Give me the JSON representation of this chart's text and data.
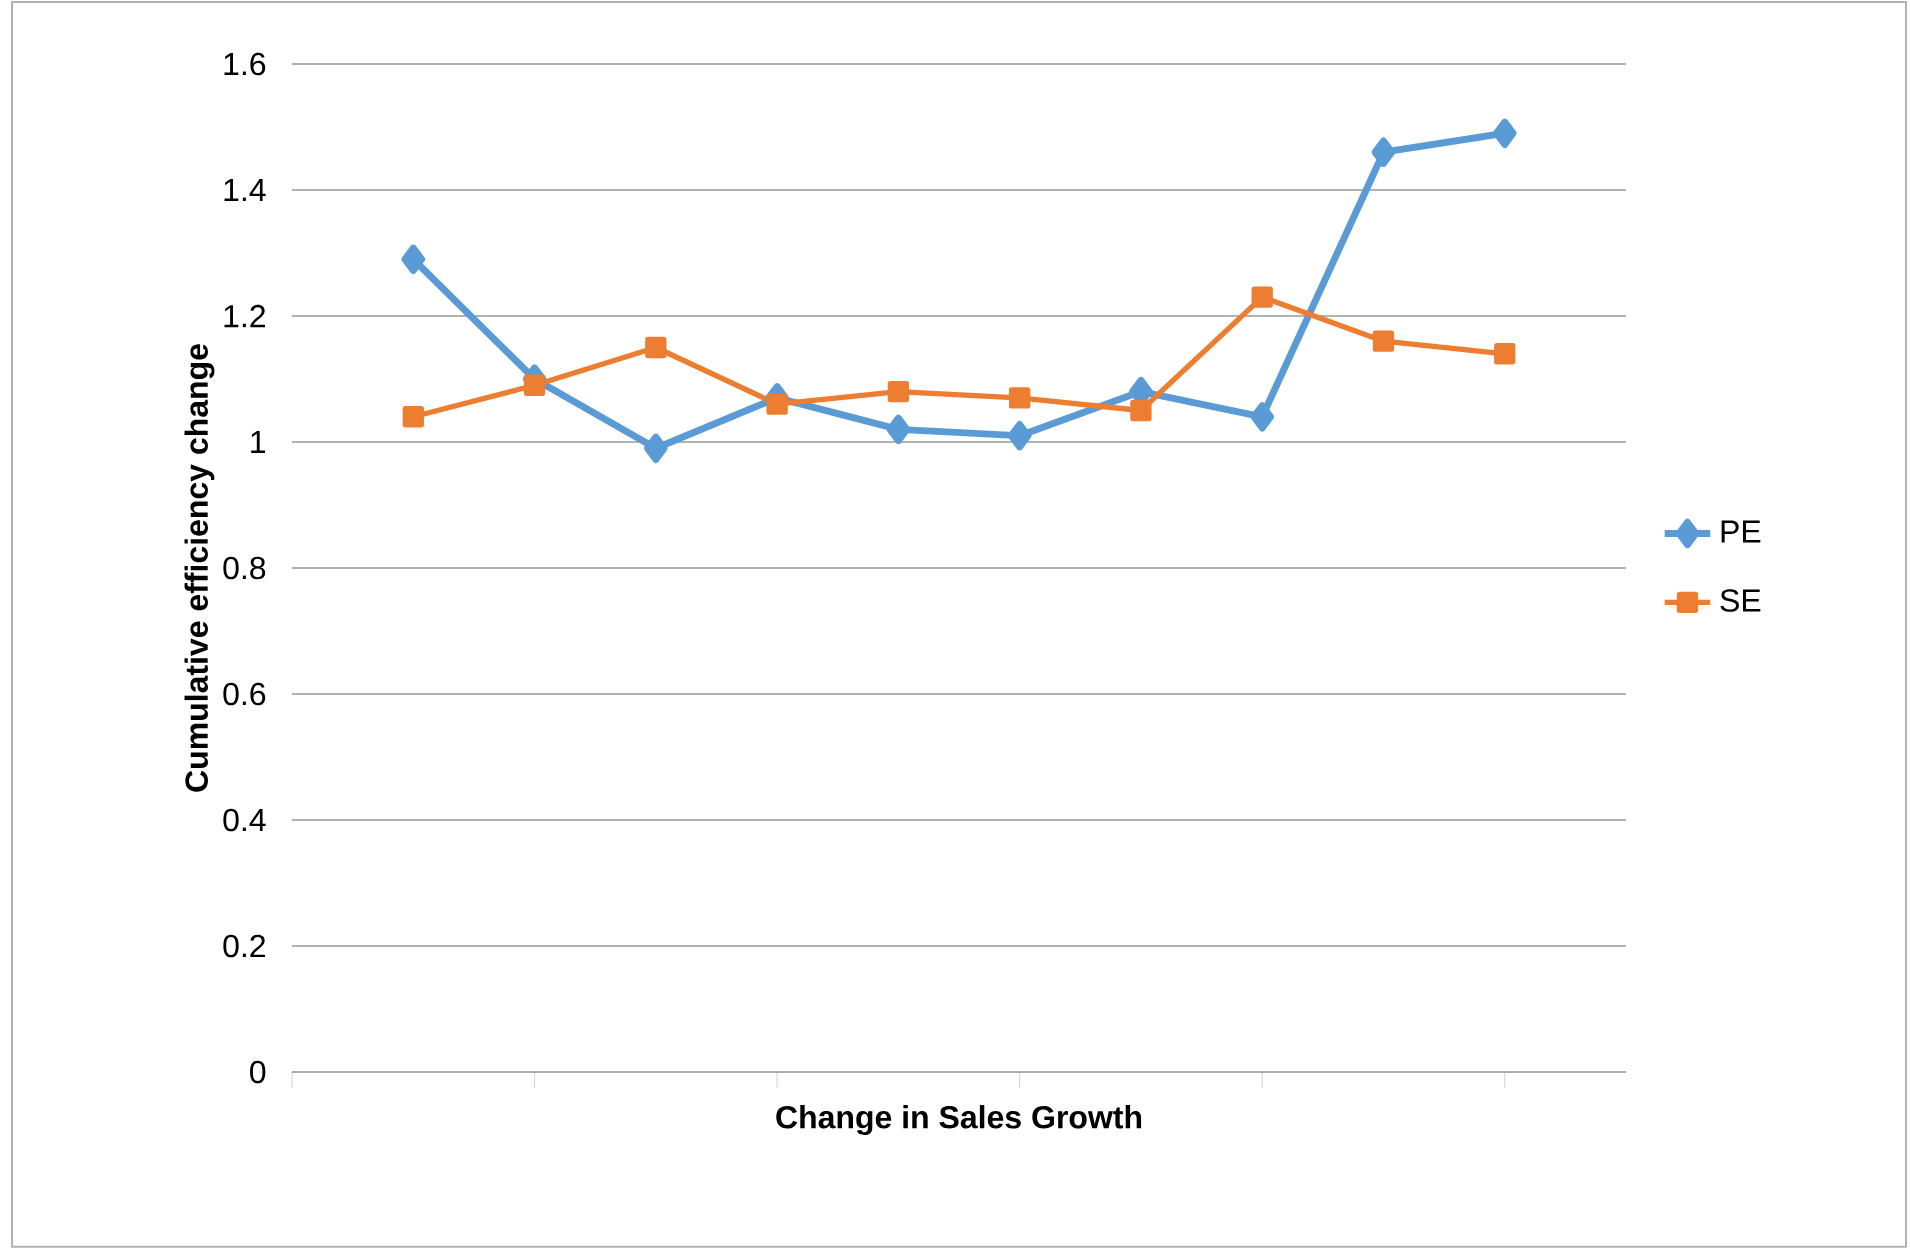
{
  "chart_data": {
    "type": "line",
    "xlabel": "Change in Sales Growth",
    "ylabel": "Cumulative efficiency change",
    "categories": [
      null,
      null,
      null,
      null,
      null,
      null,
      null,
      null,
      null,
      null
    ],
    "ylim": [
      0,
      1.6
    ],
    "yticks": [
      0,
      0.2,
      0.4,
      0.6,
      0.8,
      1,
      1.2,
      1.4,
      1.6
    ],
    "grid": "y",
    "legend": "right",
    "series": [
      {
        "name": "PE",
        "color": "#5b9bd5",
        "marker": "diamond",
        "values": [
          1.29,
          1.1,
          0.99,
          1.07,
          1.02,
          1.01,
          1.08,
          1.04,
          1.46,
          1.49
        ]
      },
      {
        "name": "SE",
        "color": "#ed7d31",
        "marker": "square",
        "values": [
          1.04,
          1.09,
          1.15,
          1.06,
          1.08,
          1.07,
          1.05,
          1.23,
          1.16,
          1.14
        ]
      }
    ]
  }
}
